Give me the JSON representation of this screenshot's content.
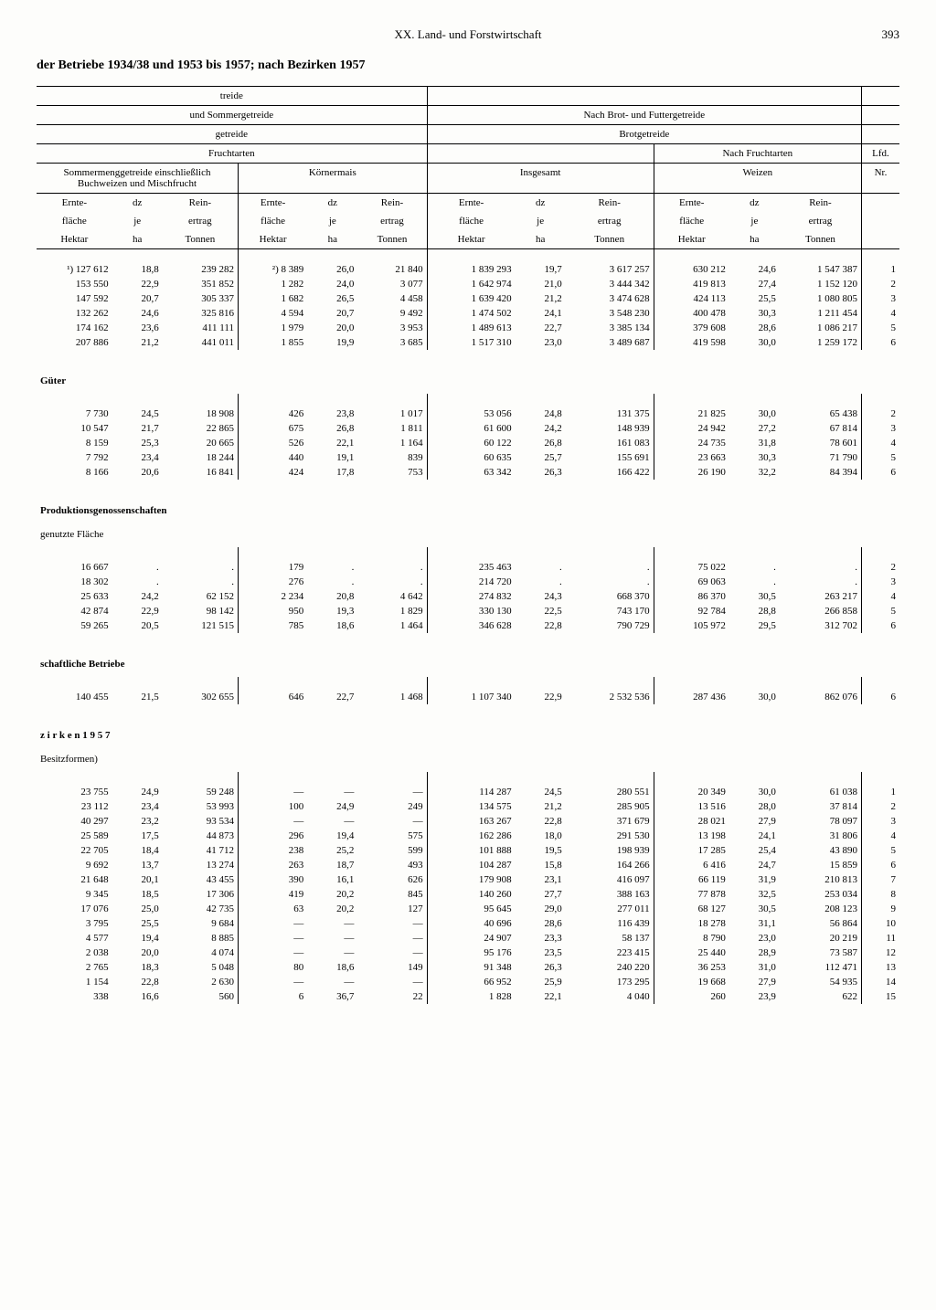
{
  "page": {
    "chapter": "XX. Land- und Forstwirtschaft",
    "number": "393",
    "title": "der Betriebe 1934/38 und 1953 bis 1957; nach Bezirken 1957"
  },
  "headers": {
    "top1_left": "treide",
    "top2_left": "und Sommergetreide",
    "top2_right": "Nach Brot- und Futtergetreide",
    "top3_left": "getreide",
    "top3_right": "Brotgetreide",
    "top4_left": "Fruchtarten",
    "top4_right": "Nach Fruchtarten",
    "top5_a": "Sommermenggetreide einschließlich Buchweizen und Mischfrucht",
    "top5_b": "Körnermais",
    "top5_c": "Insgesamt",
    "top5_d": "Weizen",
    "lfd": "Lfd.",
    "nr": "Nr.",
    "col_ernte": "Ernte-",
    "col_flaeche": "fläche",
    "col_hektar": "Hektar",
    "col_dz": "dz",
    "col_je": "je",
    "col_ha": "ha",
    "col_rein": "Rein-",
    "col_ertrag": "ertrag",
    "col_tonnen": "Tonnen"
  },
  "sections": {
    "s1": {
      "rows": [
        [
          "¹) 127 612",
          "18,8",
          "239 282",
          "²) 8 389",
          "26,0",
          "21 840",
          "1 839 293",
          "19,7",
          "3 617 257",
          "630 212",
          "24,6",
          "1 547 387",
          "1"
        ],
        [
          "153 550",
          "22,9",
          "351 852",
          "1 282",
          "24,0",
          "3 077",
          "1 642 974",
          "21,0",
          "3 444 342",
          "419 813",
          "27,4",
          "1 152 120",
          "2"
        ],
        [
          "147 592",
          "20,7",
          "305 337",
          "1 682",
          "26,5",
          "4 458",
          "1 639 420",
          "21,2",
          "3 474 628",
          "424 113",
          "25,5",
          "1 080 805",
          "3"
        ],
        [
          "132 262",
          "24,6",
          "325 816",
          "4 594",
          "20,7",
          "9 492",
          "1 474 502",
          "24,1",
          "3 548 230",
          "400 478",
          "30,3",
          "1 211 454",
          "4"
        ],
        [
          "174 162",
          "23,6",
          "411 111",
          "1 979",
          "20,0",
          "3 953",
          "1 489 613",
          "22,7",
          "3 385 134",
          "379 608",
          "28,6",
          "1 086 217",
          "5"
        ],
        [
          "207 886",
          "21,2",
          "441 011",
          "1 855",
          "19,9",
          "3 685",
          "1 517 310",
          "23,0",
          "3 489 687",
          "419 598",
          "30,0",
          "1 259 172",
          "6"
        ]
      ]
    },
    "s2": {
      "label": "Güter",
      "rows": [
        [
          "7 730",
          "24,5",
          "18 908",
          "426",
          "23,8",
          "1 017",
          "53 056",
          "24,8",
          "131 375",
          "21 825",
          "30,0",
          "65 438",
          "2"
        ],
        [
          "10 547",
          "21,7",
          "22 865",
          "675",
          "26,8",
          "1 811",
          "61 600",
          "24,2",
          "148 939",
          "24 942",
          "27,2",
          "67 814",
          "3"
        ],
        [
          "8 159",
          "25,3",
          "20 665",
          "526",
          "22,1",
          "1 164",
          "60 122",
          "26,8",
          "161 083",
          "24 735",
          "31,8",
          "78 601",
          "4"
        ],
        [
          "7 792",
          "23,4",
          "18 244",
          "440",
          "19,1",
          "839",
          "60 635",
          "25,7",
          "155 691",
          "23 663",
          "30,3",
          "71 790",
          "5"
        ],
        [
          "8 166",
          "20,6",
          "16 841",
          "424",
          "17,8",
          "753",
          "63 342",
          "26,3",
          "166 422",
          "26 190",
          "32,2",
          "84 394",
          "6"
        ]
      ]
    },
    "s3": {
      "label": "Produktionsgenossenschaften",
      "sub": "genutzte Fläche",
      "rows": [
        [
          "16 667",
          ".",
          ".",
          "179",
          ".",
          ".",
          "235 463",
          ".",
          ".",
          "75 022",
          ".",
          ".",
          "2"
        ],
        [
          "18 302",
          ".",
          ".",
          "276",
          ".",
          ".",
          "214 720",
          ".",
          ".",
          "69 063",
          ".",
          ".",
          "3"
        ],
        [
          "25 633",
          "24,2",
          "62 152",
          "2 234",
          "20,8",
          "4 642",
          "274 832",
          "24,3",
          "668 370",
          "86 370",
          "30,5",
          "263 217",
          "4"
        ],
        [
          "42 874",
          "22,9",
          "98 142",
          "950",
          "19,3",
          "1 829",
          "330 130",
          "22,5",
          "743 170",
          "92 784",
          "28,8",
          "266 858",
          "5"
        ],
        [
          "59 265",
          "20,5",
          "121 515",
          "785",
          "18,6",
          "1 464",
          "346 628",
          "22,8",
          "790 729",
          "105 972",
          "29,5",
          "312 702",
          "6"
        ]
      ]
    },
    "s4": {
      "label": "schaftliche Betriebe",
      "rows": [
        [
          "140 455",
          "21,5",
          "302 655",
          "646",
          "22,7",
          "1 468",
          "1 107 340",
          "22,9",
          "2 532 536",
          "287 436",
          "30,0",
          "862 076",
          "6"
        ]
      ]
    },
    "s5": {
      "label": "z i r k e n  1 9 5 7",
      "sub": "Besitzformen)",
      "rows": [
        [
          "23 755",
          "24,9",
          "59 248",
          "—",
          "—",
          "—",
          "114 287",
          "24,5",
          "280 551",
          "20 349",
          "30,0",
          "61 038",
          "1"
        ],
        [
          "23 112",
          "23,4",
          "53 993",
          "100",
          "24,9",
          "249",
          "134 575",
          "21,2",
          "285 905",
          "13 516",
          "28,0",
          "37 814",
          "2"
        ],
        [
          "40 297",
          "23,2",
          "93 534",
          "—",
          "—",
          "—",
          "163 267",
          "22,8",
          "371 679",
          "28 021",
          "27,9",
          "78 097",
          "3"
        ],
        [
          "25 589",
          "17,5",
          "44 873",
          "296",
          "19,4",
          "575",
          "162 286",
          "18,0",
          "291 530",
          "13 198",
          "24,1",
          "31 806",
          "4"
        ],
        [
          "22 705",
          "18,4",
          "41 712",
          "238",
          "25,2",
          "599",
          "101 888",
          "19,5",
          "198 939",
          "17 285",
          "25,4",
          "43 890",
          "5"
        ],
        [
          "9 692",
          "13,7",
          "13 274",
          "263",
          "18,7",
          "493",
          "104 287",
          "15,8",
          "164 266",
          "6 416",
          "24,7",
          "15 859",
          "6"
        ],
        [
          "21 648",
          "20,1",
          "43 455",
          "390",
          "16,1",
          "626",
          "179 908",
          "23,1",
          "416 097",
          "66 119",
          "31,9",
          "210 813",
          "7"
        ],
        [
          "9 345",
          "18,5",
          "17 306",
          "419",
          "20,2",
          "845",
          "140 260",
          "27,7",
          "388 163",
          "77 878",
          "32,5",
          "253 034",
          "8"
        ],
        [
          "17 076",
          "25,0",
          "42 735",
          "63",
          "20,2",
          "127",
          "95 645",
          "29,0",
          "277 011",
          "68 127",
          "30,5",
          "208 123",
          "9"
        ],
        [
          "3 795",
          "25,5",
          "9 684",
          "—",
          "—",
          "—",
          "40 696",
          "28,6",
          "116 439",
          "18 278",
          "31,1",
          "56 864",
          "10"
        ],
        [
          "4 577",
          "19,4",
          "8 885",
          "—",
          "—",
          "—",
          "24 907",
          "23,3",
          "58 137",
          "8 790",
          "23,0",
          "20 219",
          "11"
        ],
        [
          "2 038",
          "20,0",
          "4 074",
          "—",
          "—",
          "—",
          "95 176",
          "23,5",
          "223 415",
          "25 440",
          "28,9",
          "73 587",
          "12"
        ],
        [
          "2 765",
          "18,3",
          "5 048",
          "80",
          "18,6",
          "149",
          "91 348",
          "26,3",
          "240 220",
          "36 253",
          "31,0",
          "112 471",
          "13"
        ],
        [
          "1 154",
          "22,8",
          "2 630",
          "—",
          "—",
          "—",
          "66 952",
          "25,9",
          "173 295",
          "19 668",
          "27,9",
          "54 935",
          "14"
        ],
        [
          "338",
          "16,6",
          "560",
          "6",
          "36,7",
          "22",
          "1 828",
          "22,1",
          "4 040",
          "260",
          "23,9",
          "622",
          "15"
        ]
      ]
    }
  }
}
